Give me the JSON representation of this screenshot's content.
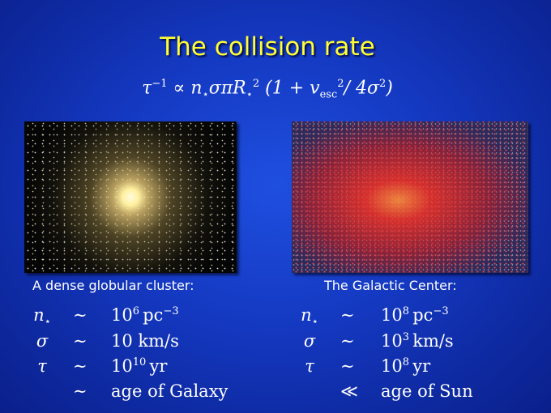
{
  "title": "The collision rate",
  "formula": {
    "parts": [
      "τ",
      "−1",
      "∝ n",
      "⋆",
      "σπR",
      "⋆",
      "2",
      "(1 + v",
      "esc",
      "2",
      "/ 4σ",
      "2",
      ")"
    ]
  },
  "panels": [
    {
      "caption": "A dense globular cluster:",
      "rows": [
        {
          "symbol": "n",
          "symbol_sub": "⋆",
          "relation": "∼",
          "value": "10",
          "value_sup": "6",
          "unit": "pc",
          "unit_sup": "−3"
        },
        {
          "symbol": "σ",
          "relation": "∼",
          "value": "10 km/s"
        },
        {
          "symbol": "τ",
          "relation": "∼",
          "value": "10",
          "value_sup": "10",
          "unit": "yr"
        },
        {
          "relation": "∼",
          "value": "age of Galaxy"
        }
      ]
    },
    {
      "caption": "The Galactic Center:",
      "rows": [
        {
          "symbol": "n",
          "symbol_sub": "⋆",
          "relation": "∼",
          "value": "10",
          "value_sup": "8",
          "unit": "pc",
          "unit_sup": "−3"
        },
        {
          "symbol": "σ",
          "relation": "∼",
          "value": "10",
          "value_sup": "3",
          "unit": "km/s"
        },
        {
          "symbol": "τ",
          "relation": "∼",
          "value": "10",
          "value_sup": "8",
          "unit": "yr"
        },
        {
          "relation": "≪",
          "value": "age of Sun"
        }
      ]
    }
  ]
}
